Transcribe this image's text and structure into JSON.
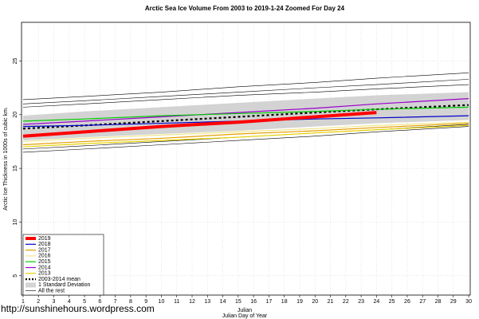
{
  "chart_data": {
    "type": "line",
    "title": "Arctic Sea Ice Volume From 2003 to 2019-1-24 Zoomed For Day 24",
    "x_label": "Julian",
    "x_sublabel": "Julian Day of Year",
    "y_label": "Arctic Ice Thickness in 1000s of cubic km.",
    "footer": "http://sunshinehours.wordpress.com",
    "x": [
      1,
      5,
      10,
      15,
      20,
      24,
      30
    ],
    "xlim": [
      0.9,
      30.1
    ],
    "xticks": [
      1,
      2,
      3,
      4,
      5,
      6,
      7,
      8,
      9,
      10,
      11,
      12,
      13,
      14,
      15,
      16,
      17,
      18,
      19,
      20,
      21,
      22,
      23,
      24,
      25,
      26,
      27,
      28,
      29,
      30
    ],
    "ylim": [
      3.2,
      28.6
    ],
    "yticks": [
      5,
      10,
      15,
      20,
      25
    ],
    "grid": true,
    "legend": "bottom-left",
    "series": [
      {
        "name": "2019",
        "color": "#ff0000",
        "width": 4,
        "dash": false,
        "values": [
          18.0,
          18.4,
          18.9,
          19.3,
          19.8,
          20.2,
          null
        ]
      },
      {
        "name": "2018",
        "color": "#0000cc",
        "width": 1.2,
        "dash": false,
        "values": [
          18.9,
          19.0,
          19.2,
          19.4,
          19.6,
          19.7,
          19.9
        ]
      },
      {
        "name": "2017",
        "color": "#e69f00",
        "width": 1.2,
        "dash": false,
        "values": [
          17.2,
          17.5,
          17.8,
          18.2,
          18.5,
          18.8,
          19.2
        ]
      },
      {
        "name": "2016",
        "color": "#f0e68c",
        "width": 1.2,
        "dash": false,
        "values": [
          17.5,
          17.8,
          18.1,
          18.4,
          18.7,
          19.0,
          19.3
        ]
      },
      {
        "name": "2015",
        "color": "#00cc00",
        "width": 1.2,
        "dash": false,
        "values": [
          19.4,
          19.6,
          19.9,
          20.1,
          20.3,
          20.5,
          20.7
        ]
      },
      {
        "name": "2014",
        "color": "#9900cc",
        "width": 1.2,
        "dash": false,
        "values": [
          19.1,
          19.4,
          19.8,
          20.2,
          20.6,
          21.0,
          21.5
        ]
      },
      {
        "name": "2013",
        "color": "#e6d200",
        "width": 1.2,
        "dash": false,
        "values": [
          17.0,
          17.3,
          17.6,
          17.9,
          18.3,
          18.6,
          19.0
        ]
      },
      {
        "name": "2003-2014 mean",
        "color": "#000000",
        "width": 2.2,
        "dash": true,
        "values": [
          18.7,
          19.0,
          19.4,
          19.8,
          20.2,
          20.5,
          20.9
        ]
      }
    ],
    "band": {
      "name": "1 Standard Deviation",
      "color": "#d3d3d3",
      "lower": [
        17.6,
        17.9,
        18.2,
        18.5,
        18.9,
        19.2,
        19.5
      ],
      "upper": [
        19.9,
        20.3,
        20.7,
        21.1,
        21.5,
        21.8,
        22.1
      ]
    },
    "others": {
      "name": "All the rest",
      "color": "#000000",
      "lines": [
        [
          21.4,
          21.7,
          22.1,
          22.6,
          23.0,
          23.4,
          23.9
        ],
        [
          21.0,
          21.3,
          21.7,
          22.1,
          22.5,
          22.8,
          23.3
        ],
        [
          20.7,
          21.0,
          21.4,
          21.8,
          22.1,
          22.4,
          22.8
        ],
        [
          16.5,
          16.8,
          17.2,
          17.6,
          18.0,
          18.4,
          18.9
        ],
        [
          16.8,
          17.1,
          17.5,
          17.9,
          18.3,
          18.6,
          19.1
        ]
      ]
    }
  }
}
